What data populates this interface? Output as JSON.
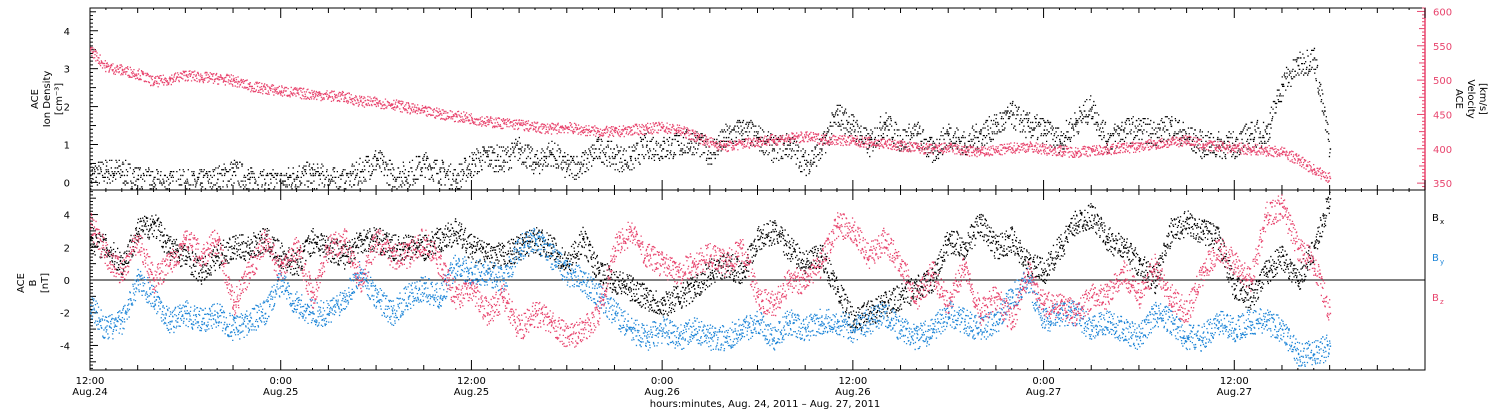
{
  "chart_data": [
    {
      "type": "scatter",
      "ylabel_lines": [
        "ACE",
        "Ion Density",
        "[cm⁻³]"
      ],
      "y2label_lines": [
        "ACE",
        "Velocity",
        "[km/s]"
      ],
      "ylim": [
        -0.2,
        4.6
      ],
      "y_ticks": [
        "0",
        "1",
        "2",
        "3",
        "4"
      ],
      "y2lim": [
        340,
        605
      ],
      "y2_ticks": [
        "350",
        "400",
        "450",
        "500",
        "550",
        "600"
      ],
      "series": [
        {
          "axis": "left",
          "color": "#000000",
          "x": [
            0,
            1,
            2,
            3,
            4,
            5,
            6,
            7,
            8,
            9,
            10,
            11,
            12,
            13,
            14,
            15,
            16,
            17,
            18,
            19,
            20,
            21,
            22,
            23,
            24,
            25,
            26,
            27,
            28,
            29,
            30,
            31,
            32,
            33,
            34,
            35,
            36,
            37,
            38,
            39,
            40,
            41,
            42,
            43,
            44,
            45,
            46,
            47,
            48,
            49,
            50,
            51,
            52,
            53,
            54,
            55,
            56,
            57,
            58,
            59,
            60,
            61,
            62,
            63,
            64,
            65,
            66,
            67,
            68,
            69,
            70,
            71,
            72,
            73,
            74,
            75,
            76,
            77,
            78
          ],
          "values": [
            0.2,
            0.3,
            0.3,
            0.1,
            0.0,
            0.0,
            0.0,
            0.0,
            0.1,
            0.3,
            0.1,
            0.0,
            0.0,
            0.2,
            0.2,
            0.1,
            0.0,
            0.3,
            0.6,
            0.2,
            0.2,
            0.5,
            0.3,
            0.1,
            0.5,
            0.7,
            0.6,
            0.9,
            0.5,
            0.8,
            0.4,
            0.5,
            0.9,
            0.7,
            0.6,
            1.0,
            0.9,
            1.0,
            1.1,
            0.8,
            1.2,
            1.4,
            1.2,
            0.9,
            1.0,
            0.5,
            0.9,
            1.8,
            1.5,
            1.0,
            1.6,
            1.1,
            1.3,
            0.8,
            1.3,
            1.0,
            1.3,
            1.5,
            1.8,
            1.5,
            1.4,
            1.1,
            1.6,
            2.0,
            1.1,
            1.4,
            1.4,
            1.3,
            1.5,
            1.2,
            1.0,
            1.0,
            1.0,
            1.3,
            1.3,
            2.6,
            3.1,
            3.3,
            0.9
          ]
        },
        {
          "axis": "right",
          "color": "#e8456e",
          "x": [
            0,
            1,
            2,
            3,
            4,
            5,
            6,
            7,
            8,
            9,
            10,
            11,
            12,
            13,
            14,
            15,
            16,
            17,
            18,
            19,
            20,
            21,
            22,
            23,
            24,
            25,
            26,
            27,
            28,
            29,
            30,
            31,
            32,
            33,
            34,
            35,
            36,
            37,
            38,
            39,
            40,
            41,
            42,
            43,
            44,
            45,
            46,
            47,
            48,
            49,
            50,
            51,
            52,
            53,
            54,
            55,
            56,
            57,
            58,
            59,
            60,
            61,
            62,
            63,
            64,
            65,
            66,
            67,
            68,
            69,
            70,
            71,
            72,
            73,
            74,
            75,
            76,
            77,
            78
          ],
          "values": [
            545,
            520,
            515,
            510,
            498,
            502,
            508,
            505,
            503,
            500,
            492,
            488,
            485,
            482,
            480,
            478,
            476,
            470,
            468,
            466,
            460,
            455,
            452,
            448,
            445,
            440,
            438,
            436,
            432,
            430,
            432,
            428,
            426,
            425,
            428,
            430,
            432,
            428,
            420,
            410,
            404,
            408,
            412,
            414,
            416,
            418,
            415,
            414,
            412,
            410,
            408,
            405,
            402,
            400,
            402,
            398,
            396,
            398,
            402,
            404,
            400,
            398,
            396,
            398,
            400,
            402,
            404,
            408,
            410,
            414,
            406,
            404,
            402,
            400,
            398,
            396,
            385,
            370,
            358
          ]
        }
      ]
    },
    {
      "type": "scatter",
      "ylabel_lines": [
        "ACE",
        "B",
        "[nT]"
      ],
      "ylim": [
        -5.5,
        5.5
      ],
      "y_ticks": [
        "-4",
        "-2",
        "0",
        "2",
        "4"
      ],
      "series": [
        {
          "name": "Bx",
          "label_main": "B",
          "label_sub": "x",
          "color": "#000000",
          "x": [
            0,
            1,
            2,
            3,
            4,
            5,
            6,
            7,
            8,
            9,
            10,
            11,
            12,
            13,
            14,
            15,
            16,
            17,
            18,
            19,
            20,
            21,
            22,
            23,
            24,
            25,
            26,
            27,
            28,
            29,
            30,
            31,
            32,
            33,
            34,
            35,
            36,
            37,
            38,
            39,
            40,
            41,
            42,
            43,
            44,
            45,
            46,
            47,
            48,
            49,
            50,
            51,
            52,
            53,
            54,
            55,
            56,
            57,
            58,
            59,
            60,
            61,
            62,
            63,
            64,
            65,
            66,
            67,
            68,
            69,
            70,
            71,
            72,
            73,
            74,
            75,
            76,
            77,
            78
          ],
          "values": [
            2.5,
            2.0,
            1.0,
            3.0,
            3.5,
            2.0,
            1.5,
            0.5,
            1.5,
            2.0,
            2.0,
            2.5,
            1.5,
            1.0,
            2.5,
            2.0,
            1.5,
            2.5,
            2.5,
            2.0,
            2.0,
            2.0,
            2.5,
            3.0,
            2.0,
            1.5,
            1.5,
            2.0,
            2.5,
            2.0,
            1.0,
            2.5,
            0.5,
            0.0,
            -0.5,
            -1.0,
            -1.5,
            -1.0,
            -0.5,
            0.5,
            1.0,
            0.5,
            2.5,
            3.0,
            2.0,
            1.0,
            1.5,
            -0.5,
            -2.5,
            -2.0,
            -1.5,
            -1.0,
            -0.5,
            0.0,
            2.5,
            2.0,
            3.5,
            2.0,
            2.5,
            1.0,
            0.5,
            2.0,
            3.5,
            4.0,
            2.5,
            2.0,
            1.0,
            0.0,
            3.0,
            3.5,
            3.0,
            2.5,
            -0.5,
            -1.0,
            0.5,
            1.5,
            0.0,
            2.0,
            5.0
          ]
        },
        {
          "name": "By",
          "label_main": "B",
          "label_sub": "y",
          "color": "#1f86d8",
          "x": [
            0,
            1,
            2,
            3,
            4,
            5,
            6,
            7,
            8,
            9,
            10,
            11,
            12,
            13,
            14,
            15,
            16,
            17,
            18,
            19,
            20,
            21,
            22,
            23,
            24,
            25,
            26,
            27,
            28,
            29,
            30,
            31,
            32,
            33,
            34,
            35,
            36,
            37,
            38,
            39,
            40,
            41,
            42,
            43,
            44,
            45,
            46,
            47,
            48,
            49,
            50,
            51,
            52,
            53,
            54,
            55,
            56,
            57,
            58,
            59,
            60,
            61,
            62,
            63,
            64,
            65,
            66,
            67,
            68,
            69,
            70,
            71,
            72,
            73,
            74,
            75,
            76,
            77,
            78
          ],
          "values": [
            -1.5,
            -3.0,
            -2.5,
            0.0,
            -1.0,
            -2.5,
            -2.0,
            -2.5,
            -2.0,
            -3.0,
            -2.5,
            -2.0,
            0.0,
            -1.5,
            -2.0,
            -2.0,
            -1.0,
            0.5,
            -1.0,
            -2.0,
            -1.0,
            -0.5,
            -1.0,
            1.0,
            0.5,
            0.5,
            0.0,
            2.0,
            2.5,
            1.5,
            0.5,
            0.0,
            -1.0,
            -2.0,
            -3.0,
            -3.5,
            -3.0,
            -3.5,
            -3.0,
            -3.5,
            -3.5,
            -3.0,
            -2.5,
            -3.5,
            -2.5,
            -3.0,
            -2.5,
            -2.5,
            -3.0,
            -2.5,
            -2.0,
            -3.0,
            -3.5,
            -3.0,
            -2.0,
            -2.5,
            -3.0,
            -2.5,
            -1.0,
            0.0,
            -2.5,
            -2.0,
            -2.0,
            -3.0,
            -2.5,
            -3.0,
            -3.5,
            -2.0,
            -2.5,
            -3.5,
            -3.5,
            -2.5,
            -3.0,
            -2.5,
            -2.5,
            -3.0,
            -4.5,
            -4.5,
            -4.0
          ]
        },
        {
          "name": "Bz",
          "label_main": "B",
          "label_sub": "z",
          "color": "#e8456e",
          "x": [
            0,
            1,
            2,
            3,
            4,
            5,
            6,
            7,
            8,
            9,
            10,
            11,
            12,
            13,
            14,
            15,
            16,
            17,
            18,
            19,
            20,
            21,
            22,
            23,
            24,
            25,
            26,
            27,
            28,
            29,
            30,
            31,
            32,
            33,
            34,
            35,
            36,
            37,
            38,
            39,
            40,
            41,
            42,
            43,
            44,
            45,
            46,
            47,
            48,
            49,
            50,
            51,
            52,
            53,
            54,
            55,
            56,
            57,
            58,
            59,
            60,
            61,
            62,
            63,
            64,
            65,
            66,
            67,
            68,
            69,
            70,
            71,
            72,
            73,
            74,
            75,
            76,
            77,
            78
          ],
          "values": [
            3.5,
            1.5,
            0.5,
            2.5,
            0.0,
            1.0,
            2.5,
            1.5,
            2.5,
            -1.5,
            0.5,
            2.5,
            0.5,
            2.0,
            -1.0,
            2.0,
            2.5,
            0.0,
            2.5,
            1.5,
            1.5,
            2.5,
            1.0,
            -1.0,
            -0.5,
            -2.0,
            -1.0,
            -3.0,
            -2.0,
            -2.5,
            -3.5,
            -3.0,
            -2.0,
            2.0,
            3.0,
            1.5,
            1.0,
            0.5,
            1.0,
            1.5,
            1.0,
            2.0,
            -1.0,
            -1.5,
            0.0,
            0.0,
            1.0,
            3.5,
            3.0,
            1.5,
            2.5,
            1.0,
            -1.0,
            0.5,
            -1.5,
            1.0,
            -2.0,
            -1.0,
            -2.5,
            0.5,
            -1.5,
            -1.5,
            -2.0,
            -1.0,
            -1.0,
            0.5,
            -1.0,
            1.0,
            -1.0,
            -2.0,
            0.5,
            2.0,
            1.0,
            0.0,
            4.0,
            4.5,
            2.0,
            1.0,
            -2.0
          ]
        }
      ]
    }
  ],
  "x_axis": {
    "start_hours": 0,
    "end_hours": 78,
    "xlim_hours": [
      0,
      84
    ],
    "ticks": [
      {
        "hours": 0,
        "time": "12:00",
        "date": "Aug.24"
      },
      {
        "hours": 12,
        "time": "0:00",
        "date": "Aug.25"
      },
      {
        "hours": 24,
        "time": "12:00",
        "date": "Aug.25"
      },
      {
        "hours": 36,
        "time": "0:00",
        "date": "Aug.26"
      },
      {
        "hours": 48,
        "time": "12:00",
        "date": "Aug.26"
      },
      {
        "hours": 60,
        "time": "0:00",
        "date": "Aug.27"
      },
      {
        "hours": 72,
        "time": "12:00",
        "date": "Aug.27"
      }
    ],
    "label": "hours:minutes, Aug. 24, 2011 – Aug. 27, 2011"
  }
}
